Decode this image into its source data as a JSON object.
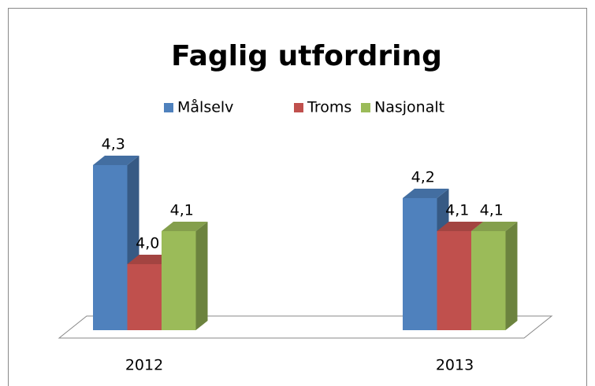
{
  "chart_data": {
    "type": "bar3d",
    "title": "Faglig utfordring",
    "categories": [
      "2012",
      "2013"
    ],
    "series": [
      {
        "name": "Målselv",
        "color": "#4f81bd",
        "values": [
          4.3,
          4.2
        ],
        "value_labels": [
          "4,3",
          "4,2"
        ]
      },
      {
        "name": "Troms",
        "color": "#c0504d",
        "values": [
          4.0,
          4.1
        ],
        "value_labels": [
          "4,0",
          "4,1"
        ]
      },
      {
        "name": "Nasjonalt",
        "color": "#9bbb59",
        "values": [
          4.1,
          4.1
        ],
        "value_labels": [
          "4,1",
          "4,1"
        ]
      }
    ],
    "ylim": [
      3.8,
      4.4
    ],
    "legend": "top"
  }
}
